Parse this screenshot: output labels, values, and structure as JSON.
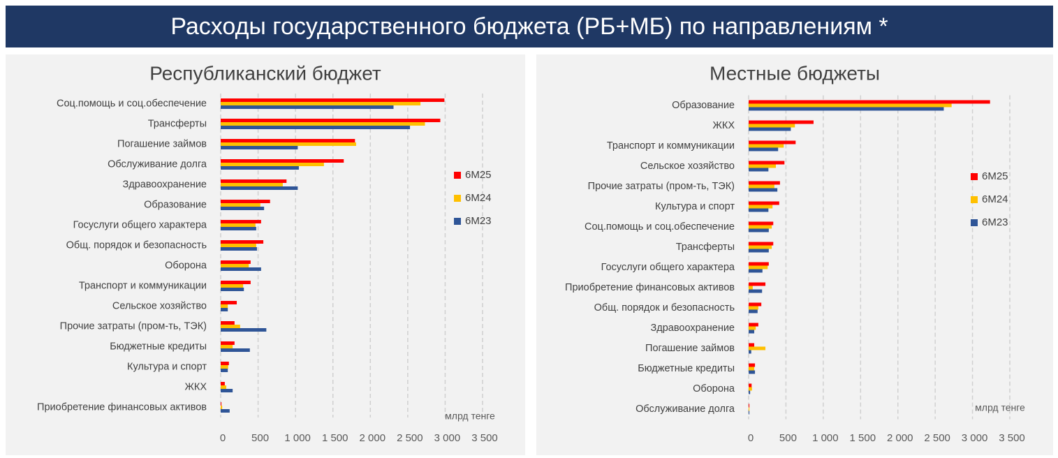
{
  "title": "Расходы государственного бюджета (РБ+МБ) по направлениям *",
  "chart_data": [
    {
      "type": "hbar",
      "title": "Республиканский бюджет",
      "categories": [
        "Соц.помощь и соц.обеспечение",
        "Трансферты",
        "Погашение займов",
        "Обслуживание долга",
        "Здравоохранение",
        "Образование",
        "Госуслуги общего характера",
        "Общ. порядок и безопасность",
        "Оборона",
        "Транспорт и коммуникации",
        "Сельское хозяйство",
        "Прочие затраты (пром-ть, ТЭК)",
        "Бюджетные кредиты",
        "Культура и спорт",
        "ЖКХ",
        "Приобретение финансовых активов"
      ],
      "series": [
        {
          "name": "6М25",
          "color": "#ff0000",
          "values": [
            2990,
            2935,
            1795,
            1645,
            880,
            660,
            540,
            570,
            400,
            400,
            215,
            185,
            185,
            110,
            55,
            10
          ]
        },
        {
          "name": "6М24",
          "color": "#ffc000",
          "values": [
            2670,
            2730,
            1810,
            1380,
            830,
            530,
            465,
            475,
            375,
            300,
            95,
            260,
            160,
            100,
            75,
            20
          ]
        },
        {
          "name": "6М23",
          "color": "#2f5597",
          "values": [
            2310,
            2530,
            1030,
            1045,
            1030,
            580,
            475,
            485,
            540,
            310,
            95,
            610,
            390,
            95,
            160,
            120
          ]
        }
      ],
      "xlabel": "млрд тенге",
      "xlim": [
        0,
        3500
      ],
      "xticks": [
        0,
        500,
        {
          "value": 1000,
          "label": "1 000"
        },
        {
          "value": 1500,
          "label": "1 500"
        },
        {
          "value": 2000,
          "label": "2 000"
        },
        {
          "value": 2500,
          "label": "2 500"
        },
        {
          "value": 3000,
          "label": "3 000"
        },
        {
          "value": 3500,
          "label": "3 500"
        }
      ],
      "grid": true,
      "legend": "right"
    },
    {
      "type": "hbar",
      "title": "Местные бюджеты",
      "categories": [
        "Образование",
        "ЖКХ",
        "Транспорт и коммуникации",
        "Сельское хозяйство",
        "Прочие затраты (пром-ть, ТЭК)",
        "Культура и спорт",
        "Соц.помощь и соц.обеспечение",
        "Трансферты",
        "Госуслуги общего характера",
        "Приобретение финансовых активов",
        "Общ. порядок и безопасность",
        "Здравоохранение",
        "Погашение займов",
        "Бюджетные кредиты",
        "Оборона",
        "Обслуживание долга"
      ],
      "series": [
        {
          "name": "6М25",
          "color": "#ff0000",
          "values": [
            3235,
            870,
            630,
            480,
            420,
            410,
            330,
            330,
            270,
            225,
            170,
            130,
            75,
            85,
            40,
            10
          ]
        },
        {
          "name": "6М24",
          "color": "#ffc000",
          "values": [
            2720,
            620,
            470,
            365,
            345,
            320,
            310,
            310,
            255,
            55,
            130,
            95,
            225,
            75,
            45,
            10
          ]
        },
        {
          "name": "6М23",
          "color": "#2f5597",
          "values": [
            2615,
            565,
            395,
            265,
            385,
            265,
            270,
            270,
            185,
            180,
            120,
            75,
            35,
            85,
            20,
            10
          ]
        }
      ],
      "xlabel": "млрд тенге",
      "xlim": [
        0,
        3500
      ],
      "xticks": [
        0,
        500,
        {
          "value": 1000,
          "label": "1 000"
        },
        {
          "value": 1500,
          "label": "1 500"
        },
        {
          "value": 2000,
          "label": "2 000"
        },
        {
          "value": 2500,
          "label": "2 500"
        },
        {
          "value": 3000,
          "label": "3 000"
        },
        {
          "value": 3500,
          "label": "3 500"
        }
      ],
      "grid": true,
      "legend": "right"
    }
  ]
}
